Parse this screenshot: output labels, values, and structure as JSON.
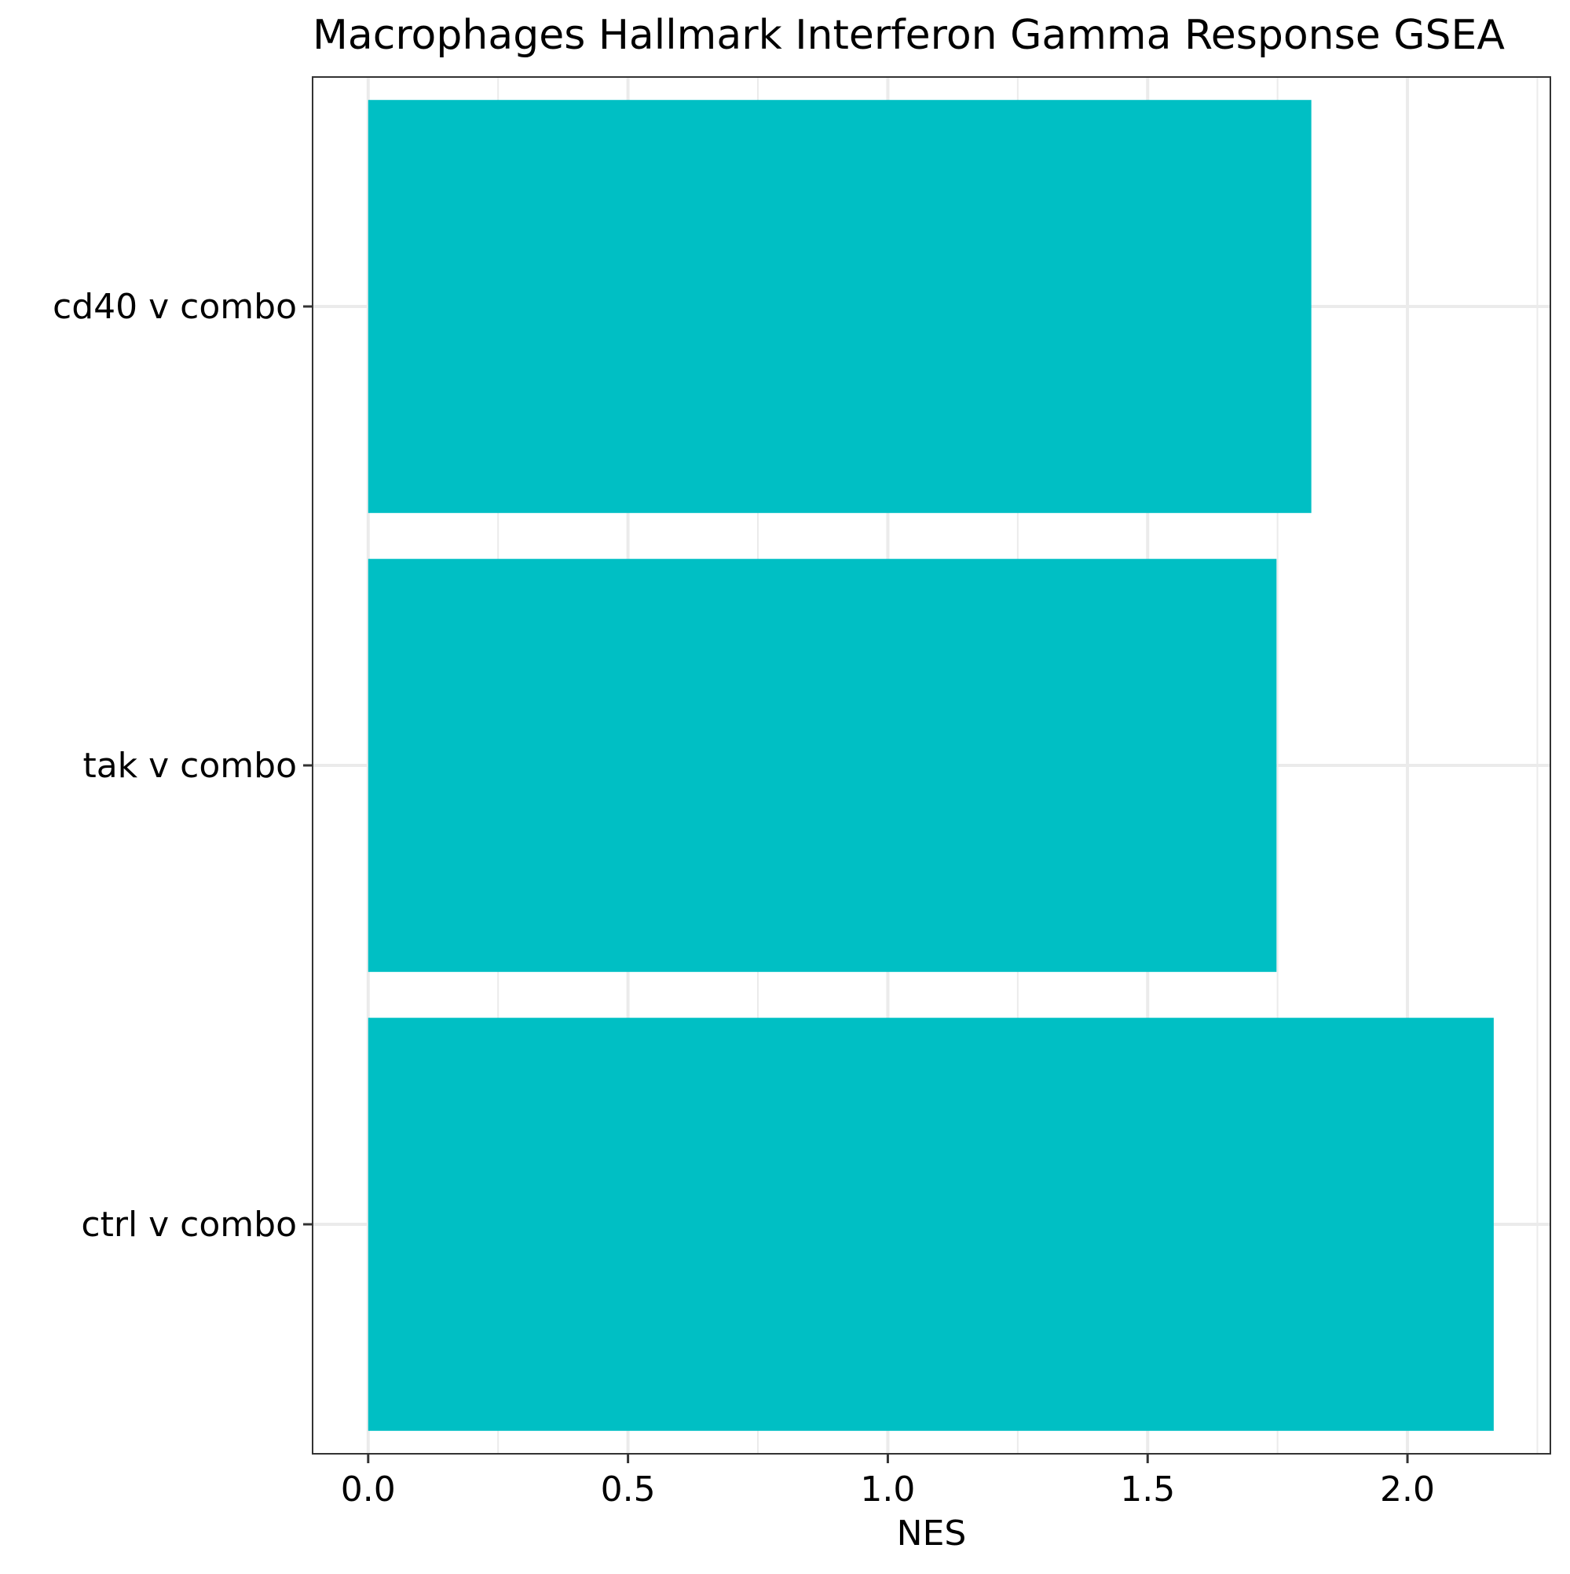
{
  "chart_data": {
    "type": "bar",
    "orientation": "horizontal",
    "title": "Macrophages Hallmark Interferon Gamma Response GSEA",
    "xlabel": "NES",
    "ylabel": "",
    "categories": [
      "cd40 v combo",
      "tak v combo",
      "ctrl v combo"
    ],
    "values": [
      1.815,
      1.748,
      2.166
    ],
    "xlim": [
      -0.107,
      2.275
    ],
    "xticks": [
      0.0,
      0.5,
      1.0,
      1.5,
      2.0
    ],
    "xtick_labels": [
      "0.0",
      "0.5",
      "1.0",
      "1.5",
      "2.0"
    ],
    "grid": true,
    "legend": "none",
    "bar_color": "#00BFC4",
    "grid_color": "#EBEBEB",
    "panel_border_color": "#333333"
  }
}
